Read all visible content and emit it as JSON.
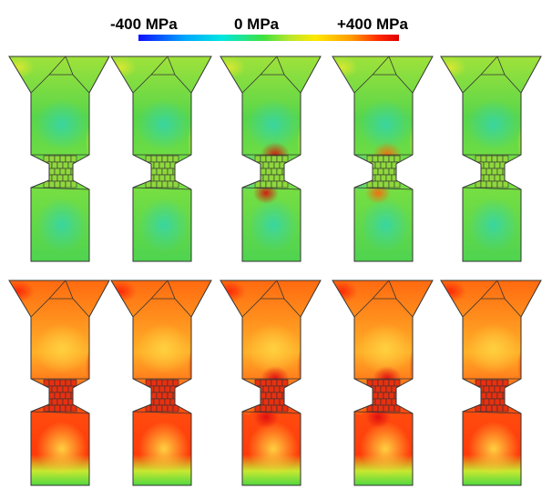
{
  "legend": {
    "min_label": "-400 MPa",
    "mid_label": "0 MPa",
    "max_label": "+400 MPa",
    "colorscale": [
      "#1010ff",
      "#00a8ff",
      "#00e6e0",
      "#3fe23f",
      "#b8e62e",
      "#ffe800",
      "#ff9a00",
      "#ff2a00",
      "#e00000"
    ]
  },
  "rows": [
    {
      "row": "top",
      "base_color": "#5fd93a",
      "panels": [
        {
          "variant": "uniform-joint"
        },
        {
          "variant": "uniform-joint"
        },
        {
          "variant": "stress-concentration-left",
          "hot_color": "#d02010",
          "cold_color": "#2ec6f0"
        },
        {
          "variant": "stress-concentration-left",
          "hot_color": "#f07010",
          "cold_color": "#2ec6f0"
        },
        {
          "variant": "uniform-joint"
        }
      ]
    },
    {
      "row": "bottom",
      "base_color": "#ff8c10",
      "panels": [
        {
          "variant": "uniform-joint"
        },
        {
          "variant": "uniform-joint"
        },
        {
          "variant": "stress-concentration-left",
          "hot_color": "#e01010",
          "cold_color": "#ffc020"
        },
        {
          "variant": "stress-concentration-left",
          "hot_color": "#e01010",
          "cold_color": "#ffc020"
        },
        {
          "variant": "uniform-joint"
        }
      ]
    }
  ]
}
